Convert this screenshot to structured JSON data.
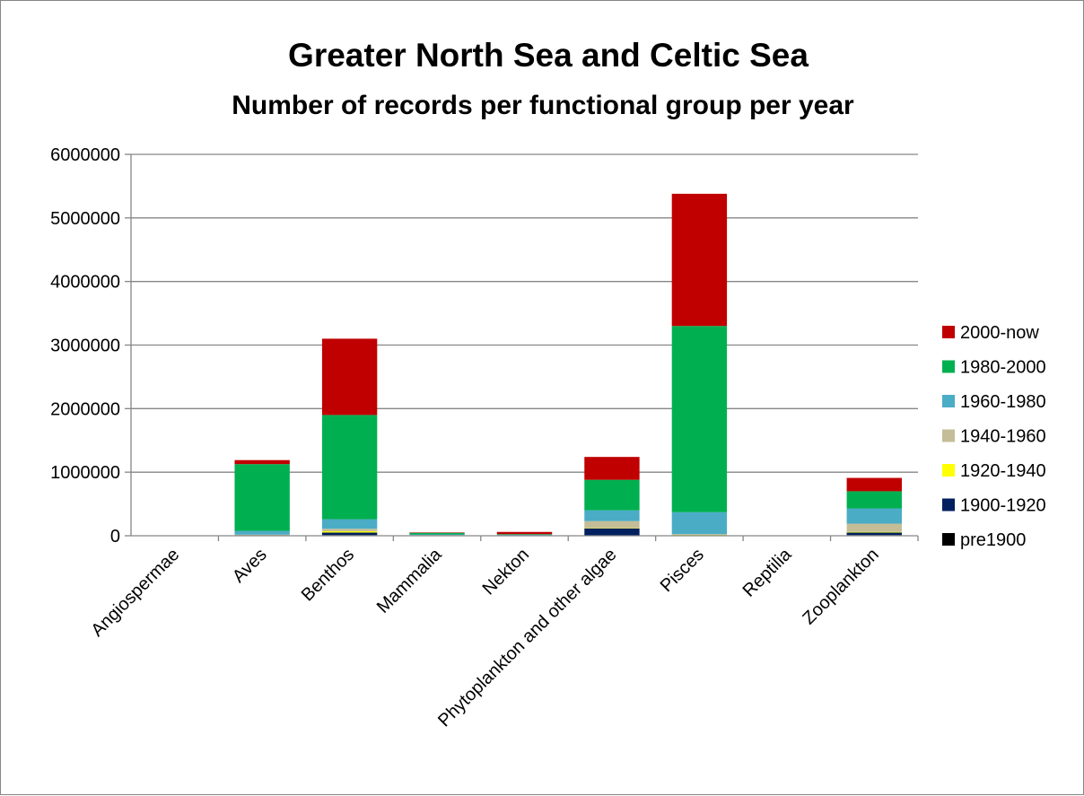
{
  "chart_data": {
    "type": "bar",
    "stacked": true,
    "title": "Greater North Sea and Celtic Sea",
    "subtitle": "Number of records per functional group per year",
    "xlabel": "",
    "ylabel": "",
    "ylim": [
      0,
      6000000
    ],
    "yticks": [
      0,
      1000000,
      2000000,
      3000000,
      4000000,
      5000000,
      6000000
    ],
    "grid": true,
    "legend_position": "right",
    "categories": [
      "Angiospermae",
      "Aves",
      "Benthos",
      "Mammalia",
      "Nekton",
      "Phytoplankton and other algae",
      "Pisces",
      "Reptilia",
      "Zooplankton"
    ],
    "series": [
      {
        "name": "pre1900",
        "color": "#000000",
        "values": [
          0,
          2000,
          10000,
          2000,
          1000,
          5000,
          5000,
          0,
          10000
        ]
      },
      {
        "name": "1900-1920",
        "color": "#002060",
        "values": [
          0,
          3000,
          40000,
          2000,
          1000,
          110000,
          5000,
          0,
          40000
        ]
      },
      {
        "name": "1920-1940",
        "color": "#FFFF00",
        "values": [
          0,
          2000,
          20000,
          2000,
          1000,
          5000,
          5000,
          0,
          10000
        ]
      },
      {
        "name": "1940-1960",
        "color": "#C4BD97",
        "values": [
          0,
          10000,
          40000,
          5000,
          5000,
          110000,
          10000,
          0,
          130000
        ]
      },
      {
        "name": "1960-1980",
        "color": "#4BACC6",
        "values": [
          0,
          60000,
          150000,
          10000,
          7000,
          170000,
          345000,
          0,
          240000
        ]
      },
      {
        "name": "1980-2000",
        "color": "#00B050",
        "values": [
          0,
          1050000,
          1640000,
          25000,
          10000,
          480000,
          2930000,
          0,
          270000
        ]
      },
      {
        "name": "2000-now",
        "color": "#C00000",
        "values": [
          0,
          63000,
          1200000,
          7000,
          35000,
          360000,
          2080000,
          0,
          210000
        ]
      }
    ]
  }
}
